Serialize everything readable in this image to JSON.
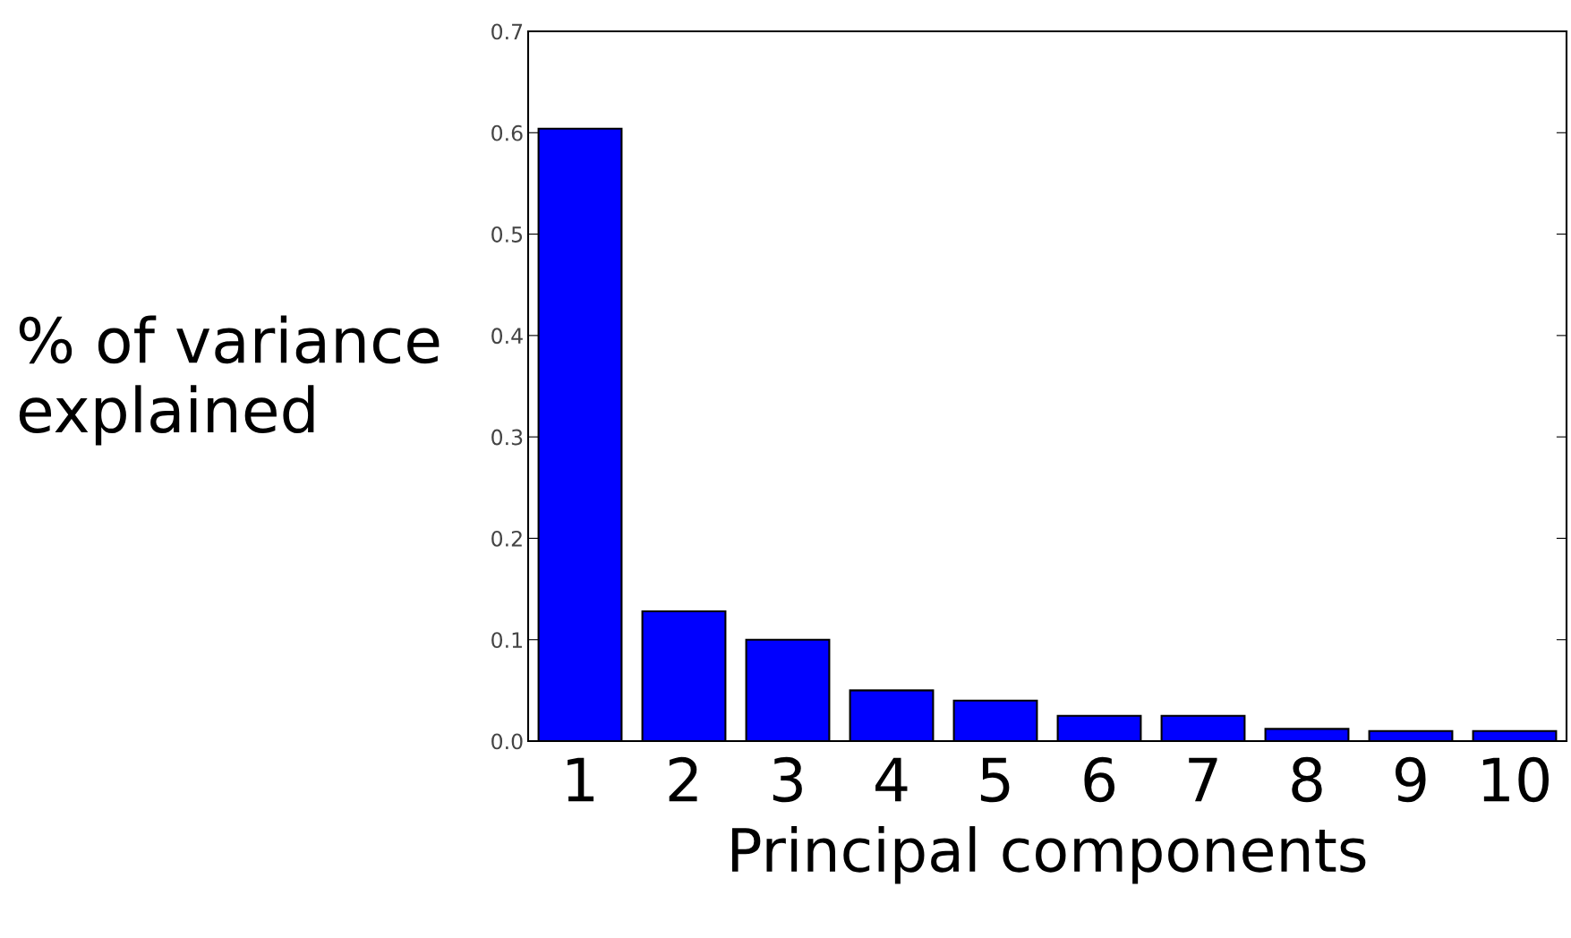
{
  "chart_data": {
    "type": "bar",
    "categories": [
      "1",
      "2",
      "3",
      "4",
      "5",
      "6",
      "7",
      "8",
      "9",
      "10"
    ],
    "values": [
      0.604,
      0.128,
      0.1,
      0.05,
      0.04,
      0.025,
      0.025,
      0.012,
      0.01,
      0.01
    ],
    "color": "#0000ff",
    "xlabel": "Principal components",
    "ylabel": "% of variance\nexplained",
    "ylim": [
      0,
      0.7
    ],
    "yticks": [
      {
        "value": 0,
        "label": "0.0"
      },
      0.1,
      0.2,
      0.3,
      0.4,
      0.5,
      0.6,
      0.7
    ],
    "grid": false
  }
}
